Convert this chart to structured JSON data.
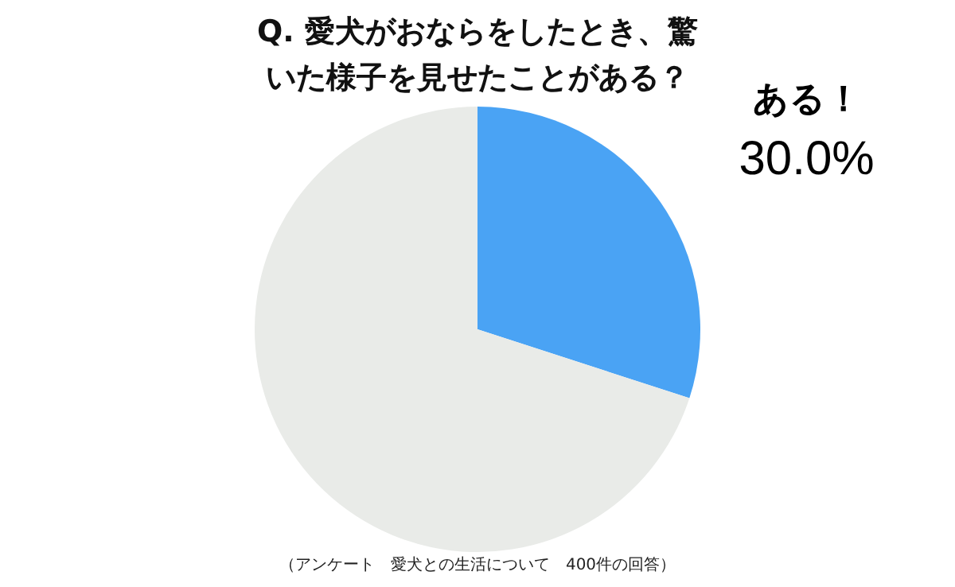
{
  "chart_data": {
    "type": "pie",
    "title": "Q.  愛犬がおならをしたとき、驚いた様子を見せたことがある？",
    "categories": [
      "ある！",
      null
    ],
    "values": [
      30,
      70
    ],
    "colors": [
      "#4aa3f4",
      "#e9ebe8"
    ],
    "value_labels": [
      "30.0%",
      null
    ],
    "annotations": [
      "（アンケート　愛犬との生活について　400件の回答）"
    ]
  }
}
